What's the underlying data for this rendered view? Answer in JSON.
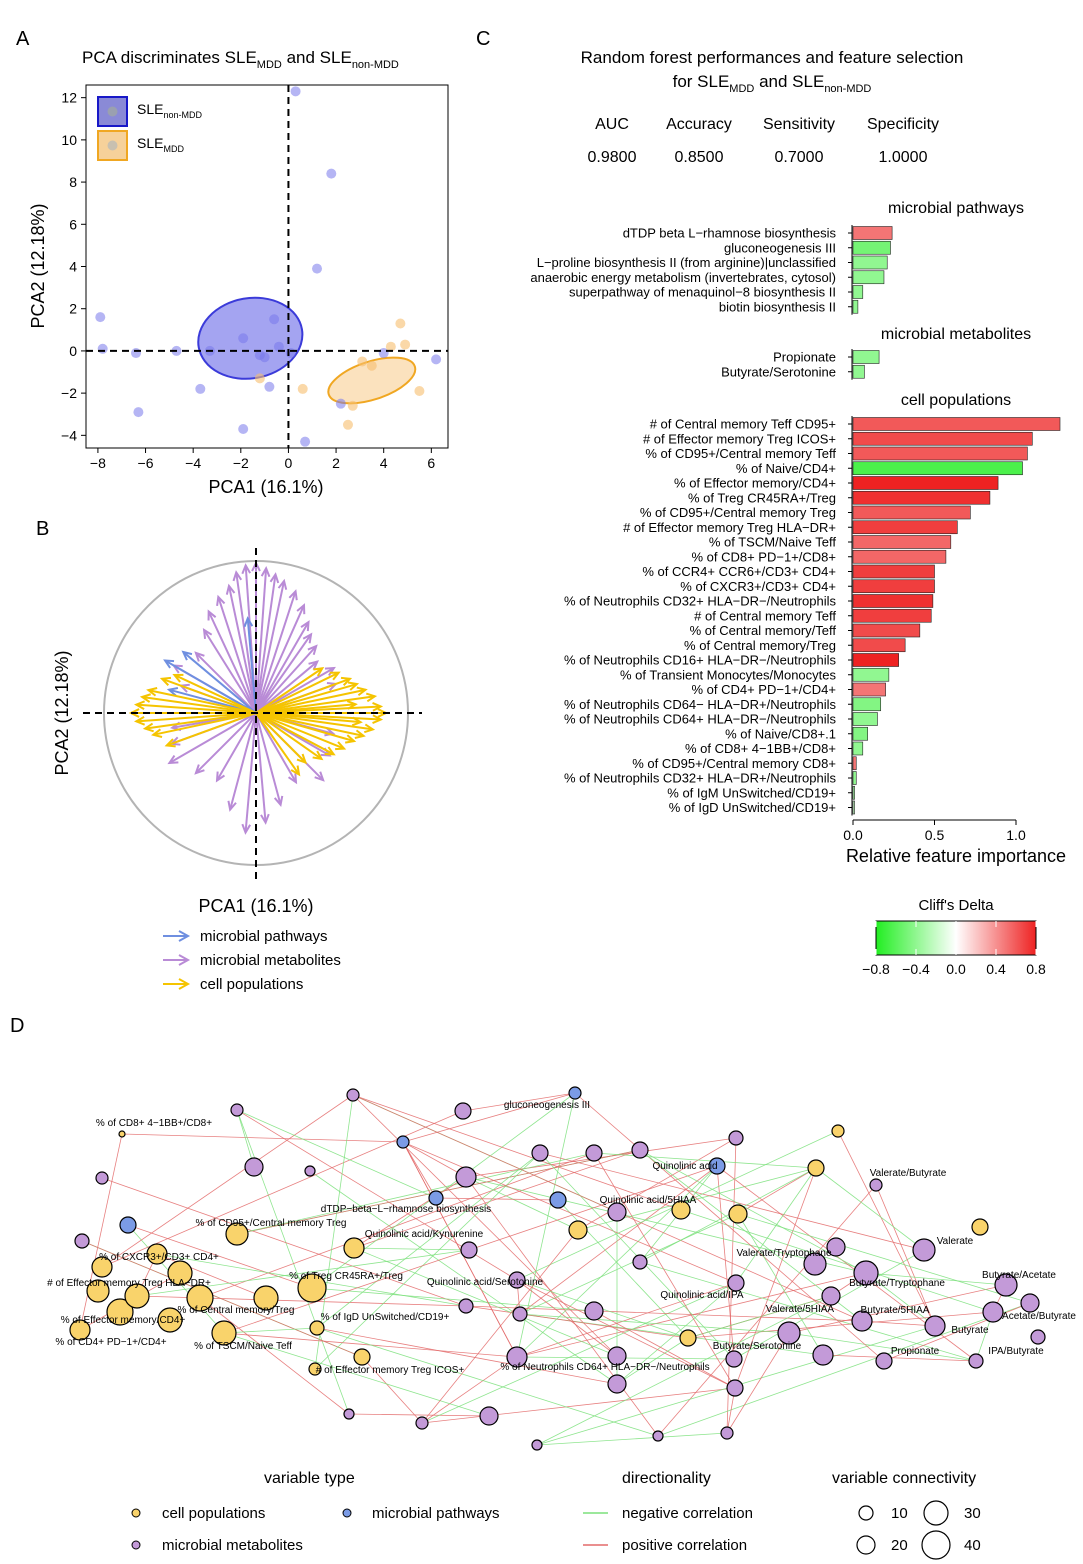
{
  "panels": {
    "a": "A",
    "b": "B",
    "c": "C",
    "d": "D"
  },
  "panel_a": {
    "title_pre": "PCA discriminates SLE",
    "title_sub1": "MDD",
    "title_mid": " and SLE",
    "title_sub2": "non-MDD",
    "legend": [
      {
        "base": "SLE",
        "sub": "non-MDD"
      },
      {
        "base": "SLE",
        "sub": "MDD"
      }
    ],
    "xlabel": "PCA1 (16.1%)",
    "ylabel": "PCA2 (12.18%)",
    "xticks": [
      "−8",
      "−6",
      "−4",
      "−2",
      "0",
      "2",
      "4",
      "6"
    ],
    "yticks": [
      "−4",
      "−2",
      "0",
      "2",
      "4",
      "6",
      "8",
      "10",
      "12"
    ]
  },
  "panel_b": {
    "xlabel": "PCA1 (16.1%)",
    "ylabel": "PCA2 (12.18%)",
    "legend": [
      "microbial pathways",
      "microbial metabolites",
      "cell populations"
    ]
  },
  "panel_c": {
    "title_line1": "Random forest performances and feature selection",
    "title_l2_pre": "for SLE",
    "title_l2_sub1": "MDD",
    "title_l2_mid": " and SLE",
    "title_l2_sub2": "non-MDD",
    "metrics": [
      {
        "name": "AUC",
        "value": "0.9800"
      },
      {
        "name": "Accuracy",
        "value": "0.8500"
      },
      {
        "name": "Sensitivity",
        "value": "0.7000"
      },
      {
        "name": "Specificity",
        "value": "1.0000"
      }
    ],
    "sections": [
      "microbial pathways",
      "microbial metabolites",
      "cell populations"
    ],
    "xlabel": "Relative feature importance",
    "xticks": [
      "0.0",
      "0.5",
      "1.0"
    ],
    "colorbar_title": "Cliff's Delta",
    "colorbar_ticks": [
      "−0.8",
      "−0.4",
      "0.0",
      "0.4",
      "0.8"
    ]
  },
  "panel_d": {
    "legend_type_title": "variable type",
    "legend_types": [
      "cell populations",
      "microbial pathways",
      "microbial metabolites"
    ],
    "legend_dir_title": "directionality",
    "legend_dirs": [
      "negative correlation",
      "positive correlation"
    ],
    "legend_conn_title": "variable connectivity",
    "legend_conn": [
      "10",
      "30",
      "20",
      "40"
    ],
    "node_labels": [
      "% of CD8+ 4−1BB+/CD8+",
      "gluconeogenesis III",
      "Quinolinic acid",
      "Valerate/Butyrate",
      "dTDP−beta−L−rhamnose biosynthesis",
      "Quinolinic acid/5HIAA",
      "% of CD95+/Central memory Treg",
      "Quinolinic acid/Kynurenine",
      "% of CXCR3+/CD3+ CD4+",
      "Valerate",
      "Valerate/Tryptophane",
      "# of Effector memory Treg HLA−DR+",
      "% of Treg CR45RA+/Treg",
      "Quinolinic acid/Serotonine",
      "Butyrate/Tryptophane",
      "Butyrate/Acetate",
      "Quinolinic acid/IPA",
      "% of Central memory/Treg",
      "% of Effector memory/CD4+",
      "% of IgD UnSwitched/CD19+",
      "Valerate/5HIAA",
      "Butyrate/5HIAA",
      "Acetate/Butyrate",
      "Butyrate",
      "% of CD4+ PD−1+/CD4+",
      "% of TSCM/Naive Teff",
      "Butyrate/Serotonine",
      "Propionate",
      "IPA/Butyrate",
      "# of Effector memory Treg ICOS+",
      "% of Neutrophils CD64+ HLA−DR−/Neutrophils"
    ]
  },
  "chart_data": [
    {
      "type": "scatter",
      "title": "PCA discriminates SLE_MDD and SLE_non-MDD",
      "xlabel": "PCA1 (16.1%)",
      "ylabel": "PCA2 (12.18%)",
      "xlim": [
        -8.5,
        6.7
      ],
      "ylim": [
        -4.6,
        12.6
      ],
      "series": [
        {
          "name": "SLE_non-MDD",
          "color": "#3b3bd9",
          "x": [
            0.3,
            1.8,
            -7.9,
            -7.8,
            -6.4,
            -4.7,
            -3.3,
            -1.9,
            -1.2,
            -1.0,
            -0.8,
            -0.4,
            -0.6,
            0.1,
            0.7,
            -1.9,
            -3.7,
            -6.3,
            2.2,
            4.0,
            6.2,
            1.2
          ],
          "y": [
            12.3,
            8.4,
            1.6,
            0.1,
            -0.1,
            0.0,
            0.0,
            0.6,
            -0.2,
            -0.3,
            -1.7,
            0.2,
            1.5,
            -0.1,
            -4.3,
            -3.7,
            -1.8,
            -2.9,
            -2.5,
            -0.1,
            -0.4,
            3.9
          ],
          "ellipse": {
            "cx": -1.6,
            "cy": 0.6,
            "rx": 2.2,
            "ry": 1.9,
            "angle": -10
          }
        },
        {
          "name": "SLE_MDD",
          "color": "#f0a722",
          "x": [
            4.7,
            4.3,
            5.5,
            3.5,
            3.1,
            2.5,
            0.6,
            2.7,
            -1.2,
            4.9
          ],
          "y": [
            1.3,
            0.2,
            -1.9,
            -0.7,
            -0.5,
            -3.5,
            -1.8,
            -2.6,
            -1.3,
            0.3
          ],
          "ellipse": {
            "cx": 3.5,
            "cy": -1.4,
            "rx": 1.9,
            "ry": 0.9,
            "angle": -18
          }
        }
      ]
    },
    {
      "type": "bar",
      "orientation": "horizontal",
      "xlabel": "Relative feature importance",
      "xlim": [
        0,
        1.3
      ],
      "color_scale": {
        "name": "Cliff's Delta",
        "range": [
          -0.8,
          0.8
        ],
        "low": "#22ee22",
        "mid": "#ffffff",
        "high": "#ee2222"
      },
      "groups": [
        {
          "name": "microbial pathways",
          "bars": [
            {
              "label": "dTDP beta L−rhamnose biosynthesis",
              "value": 0.24,
              "delta": 0.5
            },
            {
              "label": "gluconeogenesis III",
              "value": 0.23,
              "delta": -0.5
            },
            {
              "label": "L−proline biosynthesis II (from arginine)|unclassified",
              "value": 0.21,
              "delta": -0.4
            },
            {
              "label": "anaerobic energy metabolism (invertebrates, cytosol)",
              "value": 0.19,
              "delta": -0.4
            },
            {
              "label": "superpathway of menaquinol−8 biosynthesis II",
              "value": 0.06,
              "delta": -0.4
            },
            {
              "label": "biotin biosynthesis II",
              "value": 0.03,
              "delta": -0.4
            }
          ]
        },
        {
          "name": "microbial metabolites",
          "bars": [
            {
              "label": "Propionate",
              "value": 0.16,
              "delta": -0.4
            },
            {
              "label": "Butyrate/Serotonine",
              "value": 0.07,
              "delta": -0.4
            }
          ]
        },
        {
          "name": "cell populations",
          "bars": [
            {
              "label": "# of Central memory Teff CD95+",
              "value": 1.27,
              "delta": 0.6
            },
            {
              "label": "# of Effector memory Treg ICOS+",
              "value": 1.1,
              "delta": 0.65
            },
            {
              "label": "% of CD95+/Central memory Teff",
              "value": 1.07,
              "delta": 0.6
            },
            {
              "label": "% of Naive/CD4+",
              "value": 1.04,
              "delta": -0.65
            },
            {
              "label": "% of Effector memory/CD4+",
              "value": 0.89,
              "delta": 0.8
            },
            {
              "label": "% of Treg CR45RA+/Treg",
              "value": 0.84,
              "delta": 0.75
            },
            {
              "label": "% of CD95+/Central memory Treg",
              "value": 0.72,
              "delta": 0.6
            },
            {
              "label": "# of Effector memory Treg HLA−DR+",
              "value": 0.64,
              "delta": 0.7
            },
            {
              "label": "% of TSCM/Naive Teff",
              "value": 0.6,
              "delta": 0.55
            },
            {
              "label": "% of CD8+ PD−1+/CD8+",
              "value": 0.57,
              "delta": 0.55
            },
            {
              "label": "% of CCR4+ CCR6+/CD3+ CD4+",
              "value": 0.5,
              "delta": 0.7
            },
            {
              "label": "% of CXCR3+/CD3+ CD4+",
              "value": 0.5,
              "delta": 0.7
            },
            {
              "label": "% of Neutrophils CD32+ HLA−DR−/Neutrophils",
              "value": 0.49,
              "delta": 0.75
            },
            {
              "label": "# of Central memory Teff",
              "value": 0.48,
              "delta": 0.7
            },
            {
              "label": "% of Central memory/Teff",
              "value": 0.41,
              "delta": 0.65
            },
            {
              "label": "% of Central memory/Treg",
              "value": 0.32,
              "delta": 0.65
            },
            {
              "label": "% of Neutrophils CD16+ HLA−DR−/Neutrophils",
              "value": 0.28,
              "delta": 0.8
            },
            {
              "label": "% of Transient Monocytes/Monocytes",
              "value": 0.22,
              "delta": -0.4
            },
            {
              "label": "% of CD4+ PD−1+/CD4+",
              "value": 0.2,
              "delta": 0.5
            },
            {
              "label": "% of Neutrophils CD64− HLA−DR+/Neutrophils",
              "value": 0.17,
              "delta": -0.45
            },
            {
              "label": "% of Neutrophils CD64+ HLA−DR−/Neutrophils",
              "value": 0.15,
              "delta": -0.4
            },
            {
              "label": "% of Naive/CD8+.1",
              "value": 0.09,
              "delta": -0.45
            },
            {
              "label": "% of CD8+ 4−1BB+/CD8+",
              "value": 0.06,
              "delta": -0.4
            },
            {
              "label": "% of CD95+/Central memory CD8+",
              "value": 0.02,
              "delta": 0.5
            },
            {
              "label": "% of Neutrophils CD32+ HLA−DR+/Neutrophils",
              "value": 0.02,
              "delta": -0.4
            },
            {
              "label": "% of IgM UnSwitched/CD19+",
              "value": 0.01,
              "delta": -0.3
            },
            {
              "label": "% of IgD UnSwitched/CD19+",
              "value": 0.01,
              "delta": -0.2
            }
          ]
        }
      ]
    }
  ]
}
